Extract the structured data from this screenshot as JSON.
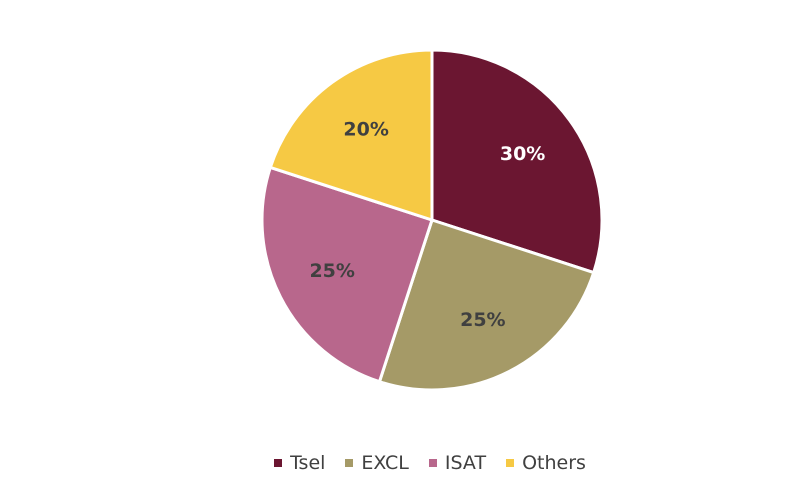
{
  "chart_data": {
    "type": "pie",
    "categories": [
      "Tsel",
      "EXCL",
      "ISAT",
      "Others"
    ],
    "values": [
      30,
      25,
      25,
      20
    ],
    "labels": [
      "30%",
      "25%",
      "25%",
      "20%"
    ],
    "colors": [
      "#6b1631",
      "#a59a67",
      "#b8678c",
      "#f6c944"
    ],
    "label_colors": [
      "#ffffff",
      "#404040",
      "#404040",
      "#404040"
    ],
    "legend_position": "bottom"
  }
}
